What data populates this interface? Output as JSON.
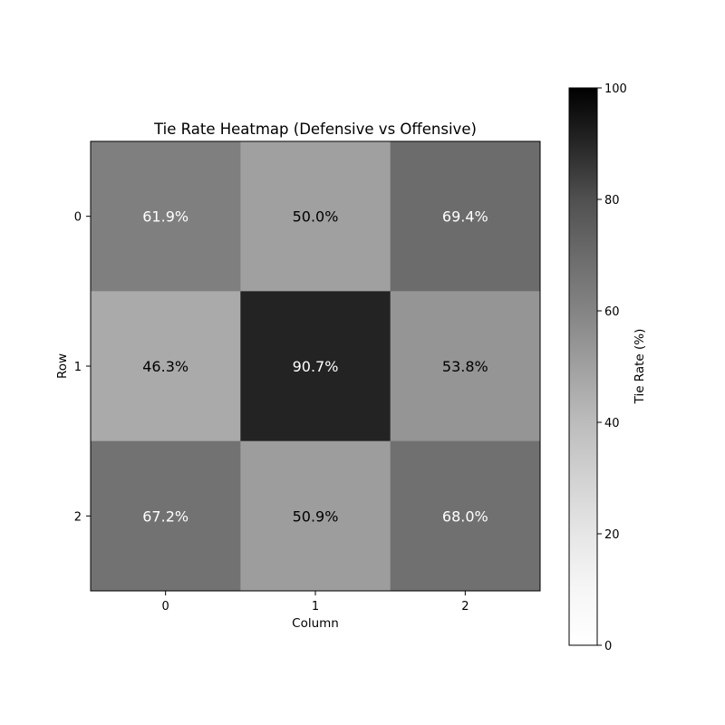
{
  "chart_data": {
    "type": "heatmap",
    "title": "Tie Rate Heatmap (Defensive vs Offensive)",
    "xlabel": "Column",
    "ylabel": "Row",
    "x_categories": [
      "0",
      "1",
      "2"
    ],
    "y_categories": [
      "0",
      "1",
      "2"
    ],
    "values": [
      [
        61.9,
        50.0,
        69.4
      ],
      [
        46.3,
        90.7,
        53.8
      ],
      [
        67.2,
        50.9,
        68.0
      ]
    ],
    "cell_labels": [
      [
        "61.9%",
        "50.0%",
        "69.4%"
      ],
      [
        "46.3%",
        "90.7%",
        "53.8%"
      ],
      [
        "67.2%",
        "50.9%",
        "68.0%"
      ]
    ],
    "colormap": "Greys",
    "vmin": 0,
    "vmax": 100,
    "colorbar": {
      "label": "Tie Rate (%)",
      "ticks": [
        0,
        20,
        40,
        60,
        80,
        100
      ],
      "tick_labels": [
        "0",
        "20",
        "40",
        "60",
        "80",
        "100"
      ]
    }
  }
}
